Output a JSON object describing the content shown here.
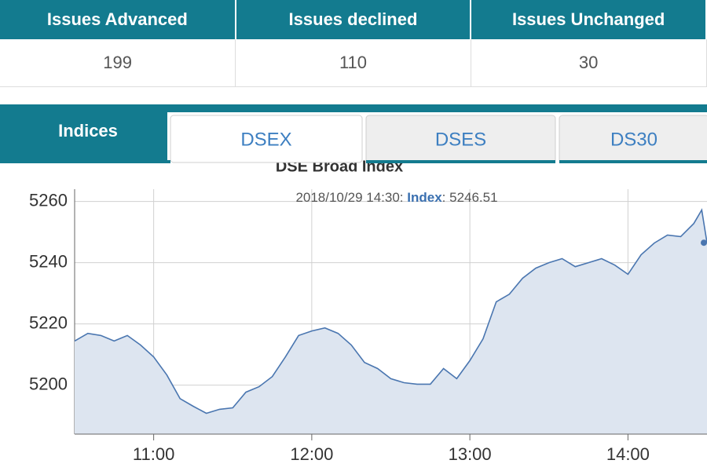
{
  "table": {
    "headers": [
      "Issues Advanced",
      "Issues declined",
      "Issues Unchanged"
    ],
    "rows": [
      [
        199,
        110,
        30
      ]
    ]
  },
  "tabs": {
    "section": "Indices",
    "items": [
      "DSEX",
      "DSES",
      "DS30"
    ],
    "active": 0
  },
  "chart_data": {
    "type": "line",
    "title": "DSE Broad Index",
    "tooltip": {
      "x": "2018/10/29 14:30",
      "separator": ": "
    },
    "x": [
      "10:30",
      "10:35",
      "10:40",
      "10:45",
      "10:50",
      "10:55",
      "11:00",
      "11:05",
      "11:10",
      "11:15",
      "11:20",
      "11:25",
      "11:30",
      "11:35",
      "11:40",
      "11:45",
      "11:50",
      "11:55",
      "12:00",
      "12:05",
      "12:10",
      "12:15",
      "12:20",
      "12:25",
      "12:30",
      "12:35",
      "12:40",
      "12:45",
      "12:50",
      "12:55",
      "13:00",
      "13:05",
      "13:10",
      "13:15",
      "13:20",
      "13:25",
      "13:30",
      "13:35",
      "13:40",
      "13:45",
      "13:50",
      "13:55",
      "14:00",
      "14:05",
      "14:10",
      "14:15",
      "14:20",
      "14:25",
      "14:28",
      "14:30"
    ],
    "series": [
      {
        "name": "Index",
        "color": "#4a76b0",
        "fill": "#dde5f0",
        "values": [
          5214.4,
          5216.9,
          5216.2,
          5214.4,
          5216.2,
          5213.1,
          5209.2,
          5203.3,
          5195.6,
          5193.1,
          5190.8,
          5192.1,
          5192.6,
          5197.7,
          5199.5,
          5202.8,
          5209.2,
          5216.2,
          5217.7,
          5218.7,
          5216.9,
          5213.1,
          5207.4,
          5205.4,
          5202.1,
          5200.8,
          5200.3,
          5200.3,
          5205.4,
          5202.1,
          5208.0,
          5215.1,
          5227.2,
          5229.7,
          5234.9,
          5238.2,
          5240.0,
          5241.3,
          5238.7,
          5240.0,
          5241.3,
          5239.2,
          5236.2,
          5242.6,
          5246.4,
          5249.0,
          5248.5,
          5252.8,
          5257.2,
          5246.51
        ]
      }
    ],
    "xlim": [
      "10:30",
      "14:30"
    ],
    "xticks": [
      "11:00",
      "12:00",
      "13:00",
      "14:00"
    ],
    "ylim": [
      5184,
      5264
    ],
    "yticks": [
      5200,
      5220,
      5240,
      5260
    ],
    "grid": true
  }
}
